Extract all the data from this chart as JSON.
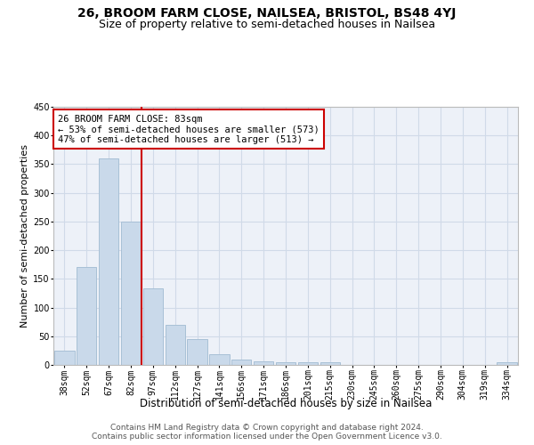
{
  "title": "26, BROOM FARM CLOSE, NAILSEA, BRISTOL, BS48 4YJ",
  "subtitle": "Size of property relative to semi-detached houses in Nailsea",
  "xlabel": "Distribution of semi-detached houses by size in Nailsea",
  "ylabel": "Number of semi-detached properties",
  "bar_labels": [
    "38sqm",
    "52sqm",
    "67sqm",
    "82sqm",
    "97sqm",
    "112sqm",
    "127sqm",
    "141sqm",
    "156sqm",
    "171sqm",
    "186sqm",
    "201sqm",
    "215sqm",
    "230sqm",
    "245sqm",
    "260sqm",
    "275sqm",
    "290sqm",
    "304sqm",
    "319sqm",
    "334sqm"
  ],
  "bar_values": [
    25,
    170,
    360,
    250,
    133,
    70,
    45,
    19,
    10,
    6,
    5,
    5,
    4,
    0,
    0,
    0,
    0,
    0,
    0,
    0,
    4
  ],
  "bar_color": "#c9d9ea",
  "bar_edgecolor": "#a8c0d6",
  "vline_color": "#cc0000",
  "vline_x_index": 3,
  "annotation_text": "26 BROOM FARM CLOSE: 83sqm\n← 53% of semi-detached houses are smaller (573)\n47% of semi-detached houses are larger (513) →",
  "annotation_box_edgecolor": "#cc0000",
  "annotation_box_facecolor": "#ffffff",
  "ylim": [
    0,
    450
  ],
  "yticks": [
    0,
    50,
    100,
    150,
    200,
    250,
    300,
    350,
    400,
    450
  ],
  "grid_color": "#d0dae8",
  "bg_color": "#edf1f8",
  "footer_text": "Contains HM Land Registry data © Crown copyright and database right 2024.\nContains public sector information licensed under the Open Government Licence v3.0.",
  "title_fontsize": 10,
  "subtitle_fontsize": 9,
  "xlabel_fontsize": 8.5,
  "ylabel_fontsize": 8,
  "tick_fontsize": 7,
  "annotation_fontsize": 7.5,
  "footer_fontsize": 6.5
}
